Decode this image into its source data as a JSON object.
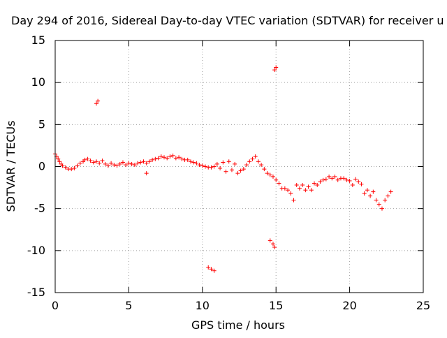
{
  "chart_data": {
    "type": "scatter",
    "title": "Day 294 of 2016, Sidereal Day-to-day VTEC variation (SDTVAR) for receiver u",
    "xlabel": "GPS time / hours",
    "ylabel": "SDTVAR / TECUs",
    "xlim": [
      0,
      25
    ],
    "ylim": [
      -15,
      15
    ],
    "xticks": [
      0,
      5,
      10,
      15,
      20,
      25
    ],
    "yticks": [
      15,
      10,
      5,
      0,
      -5,
      -10,
      -15
    ],
    "xtick_labels": [
      "0",
      "5",
      "10",
      "15",
      "20",
      "25"
    ],
    "ytick_labels": [
      "15",
      "10",
      "5",
      "0",
      "-5",
      "-10",
      "-15"
    ],
    "grid": true,
    "marker": "plus",
    "series": [
      {
        "name": "SDTVAR",
        "color": "#ff0000",
        "x": [
          0.0,
          0.1,
          0.2,
          0.3,
          0.4,
          0.5,
          0.7,
          0.9,
          1.1,
          1.3,
          1.5,
          1.7,
          1.9,
          2.0,
          2.2,
          2.4,
          2.6,
          2.8,
          3.0,
          3.2,
          3.4,
          3.6,
          3.8,
          4.0,
          4.2,
          4.4,
          4.6,
          4.8,
          5.0,
          5.2,
          5.4,
          5.6,
          5.8,
          6.0,
          6.2,
          6.4,
          6.6,
          6.8,
          7.0,
          7.2,
          7.4,
          7.6,
          7.8,
          8.0,
          8.2,
          8.4,
          8.6,
          8.8,
          9.0,
          9.2,
          9.4,
          9.6,
          9.8,
          10.0,
          10.2,
          10.4,
          10.6,
          10.8,
          11.0,
          11.2,
          11.4,
          11.6,
          11.8,
          12.0,
          12.2,
          12.4,
          12.6,
          12.8,
          13.0,
          13.2,
          13.4,
          13.6,
          13.8,
          14.0,
          14.2,
          14.4,
          14.6,
          14.8,
          15.0,
          15.2,
          15.4,
          15.6,
          15.8,
          16.0,
          16.2,
          16.4,
          16.6,
          16.8,
          17.0,
          17.2,
          17.4,
          17.6,
          17.8,
          18.0,
          18.2,
          18.4,
          18.6,
          18.8,
          19.0,
          19.2,
          19.4,
          19.6,
          19.8,
          20.0,
          20.2,
          20.4,
          20.6,
          20.8,
          21.0,
          21.2,
          21.4,
          21.6,
          21.8,
          22.0,
          22.2,
          22.4,
          22.6,
          22.8,
          2.8,
          2.9,
          14.9,
          15.0,
          6.2,
          10.4,
          10.6,
          10.8,
          14.6,
          14.8,
          14.9
        ],
        "y": [
          1.5,
          1.2,
          0.9,
          0.6,
          0.3,
          0.1,
          -0.1,
          -0.3,
          -0.3,
          -0.2,
          0.1,
          0.4,
          0.6,
          0.8,
          0.9,
          0.7,
          0.5,
          0.6,
          0.4,
          0.7,
          0.3,
          0.1,
          0.4,
          0.2,
          0.1,
          0.3,
          0.5,
          0.2,
          0.4,
          0.3,
          0.2,
          0.4,
          0.5,
          0.6,
          0.4,
          0.6,
          0.8,
          0.9,
          1.0,
          1.2,
          1.1,
          1.0,
          1.2,
          1.3,
          1.0,
          1.1,
          0.9,
          0.8,
          0.8,
          0.6,
          0.5,
          0.4,
          0.2,
          0.1,
          0.0,
          -0.1,
          -0.1,
          0.0,
          0.3,
          -0.2,
          0.5,
          -0.6,
          0.6,
          -0.4,
          0.3,
          -0.8,
          -0.5,
          -0.3,
          0.2,
          0.6,
          0.9,
          1.2,
          0.6,
          0.2,
          -0.3,
          -0.8,
          -1.0,
          -1.2,
          -1.6,
          -2.0,
          -2.6,
          -2.6,
          -2.8,
          -3.2,
          -4.0,
          -2.2,
          -2.6,
          -2.2,
          -2.8,
          -2.4,
          -2.8,
          -2.0,
          -2.2,
          -1.8,
          -1.6,
          -1.5,
          -1.2,
          -1.4,
          -1.2,
          -1.6,
          -1.4,
          -1.4,
          -1.6,
          -1.7,
          -2.2,
          -1.5,
          -1.8,
          -2.1,
          -3.2,
          -2.8,
          -3.5,
          -3.0,
          -4.0,
          -4.5,
          -5.0,
          -4.0,
          -3.5,
          -3.0,
          7.5,
          7.8,
          11.5,
          11.8,
          -0.8,
          -12.0,
          -12.2,
          -12.4,
          -8.8,
          -9.2,
          -9.6
        ]
      }
    ]
  }
}
